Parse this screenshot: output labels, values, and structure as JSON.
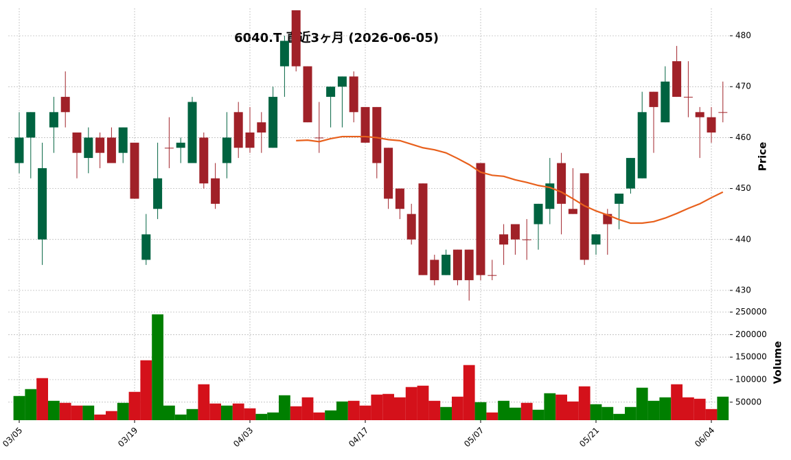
{
  "chart_data": {
    "type": "candlestick",
    "title": "6040.T 直近3ヶ月 (2026-06-05)",
    "ylabel": "Price",
    "grid": true,
    "up_color": "#006340",
    "down_color": "#a02128",
    "categories": [
      "03/05",
      "03/06",
      "03/09",
      "03/10",
      "03/11",
      "03/12",
      "03/13",
      "03/16",
      "03/17",
      "03/18",
      "03/19",
      "03/23",
      "03/24",
      "03/25",
      "03/26",
      "03/27",
      "03/30",
      "03/31",
      "04/01",
      "04/02",
      "04/03",
      "04/06",
      "04/07",
      "04/08",
      "04/09",
      "04/10",
      "04/13",
      "04/14",
      "04/15",
      "04/16",
      "04/17",
      "04/20",
      "04/21",
      "04/22",
      "04/23",
      "04/24",
      "04/27",
      "04/28",
      "04/30",
      "05/01",
      "05/07",
      "05/08",
      "05/11",
      "05/12",
      "05/13",
      "05/14",
      "05/15",
      "05/18",
      "05/19",
      "05/20",
      "05/21",
      "05/22",
      "05/25",
      "05/26",
      "05/27",
      "05/28",
      "05/29",
      "06/01",
      "06/02",
      "06/03",
      "06/04",
      "06/05"
    ],
    "open": [
      455,
      460,
      440,
      462,
      468,
      461,
      456,
      460,
      460,
      457,
      459,
      436,
      446,
      458,
      458,
      455,
      460,
      452,
      455,
      465,
      461,
      463,
      458,
      474,
      485,
      474,
      460,
      468,
      470,
      472,
      466,
      466,
      458,
      450,
      445,
      451,
      436,
      433,
      438,
      438,
      455,
      433,
      441,
      443,
      440,
      443,
      446,
      455,
      446,
      453,
      439,
      445,
      447,
      450,
      452,
      469,
      463,
      475,
      468,
      465,
      464,
      465
    ],
    "high": [
      465,
      465,
      459,
      468,
      473,
      461,
      462,
      461,
      462,
      462,
      459,
      445,
      459,
      464,
      460,
      468,
      461,
      455,
      465,
      467,
      466,
      465,
      470,
      480,
      485,
      474,
      467,
      470,
      472,
      473,
      466,
      466,
      458,
      450,
      447,
      451,
      437,
      438,
      438,
      438,
      455,
      436,
      443,
      443,
      444,
      447,
      456,
      457,
      454,
      453,
      441,
      446,
      449,
      456,
      469,
      469,
      474,
      478,
      475,
      466,
      466,
      471
    ],
    "low": [
      453,
      452,
      435,
      457,
      462,
      452,
      453,
      454,
      455,
      455,
      448,
      435,
      444,
      454,
      455,
      455,
      450,
      446,
      452,
      456,
      457,
      457,
      458,
      468,
      473,
      463,
      457,
      462,
      462,
      463,
      459,
      452,
      446,
      444,
      439,
      433,
      431,
      433,
      431,
      428,
      432,
      432,
      435,
      437,
      436,
      438,
      443,
      441,
      445,
      435,
      437,
      437,
      442,
      449,
      452,
      457,
      463,
      468,
      464,
      456,
      459,
      463
    ],
    "close": [
      460,
      465,
      454,
      465,
      465,
      457,
      460,
      457,
      455,
      462,
      448,
      441,
      452,
      458,
      459,
      467,
      451,
      447,
      460,
      458,
      458,
      461,
      468,
      479,
      474,
      463,
      460,
      470,
      472,
      465,
      459,
      455,
      448,
      446,
      440,
      433,
      432,
      437,
      432,
      432,
      433,
      433,
      439,
      440,
      440,
      447,
      451,
      447,
      445,
      436,
      441,
      443,
      449,
      456,
      465,
      466,
      471,
      468,
      468,
      464,
      461,
      465
    ],
    "ylim": [
      427.7,
      485.4
    ],
    "yticks": [
      430,
      440,
      450,
      460,
      470,
      480
    ],
    "xticks": [
      "03/05",
      "03/19",
      "04/03",
      "04/17",
      "05/07",
      "05/21",
      "06/04"
    ],
    "ma": {
      "color": "#e8601c",
      "values": [
        null,
        null,
        null,
        null,
        null,
        null,
        null,
        null,
        null,
        null,
        null,
        null,
        null,
        null,
        null,
        null,
        null,
        null,
        null,
        null,
        null,
        null,
        null,
        null,
        459.4,
        459.5,
        459.2,
        459.8,
        460.2,
        460.2,
        460.2,
        460,
        459.6,
        459.4,
        458.7,
        458,
        457.6,
        457,
        455.9,
        454.7,
        453.2,
        452.6,
        452.4,
        451.7,
        451.2,
        450.6,
        450.2,
        449.3,
        448,
        446.6,
        445.6,
        444.8,
        443.9,
        443.2,
        443.2,
        443.5,
        444.2,
        445.1,
        446.1,
        447,
        448.2,
        449.3
      ]
    },
    "volume": {
      "ylabel": "Volume",
      "up_color": "#007f00",
      "down_color": "#d4111a",
      "ylim": [
        10000,
        260000
      ],
      "yticks": [
        50000,
        100000,
        150000,
        200000,
        250000
      ],
      "values": [
        63700,
        79000,
        103400,
        53000,
        48500,
        42400,
        42400,
        22500,
        30200,
        48500,
        72900,
        143000,
        245000,
        42400,
        22500,
        34700,
        89700,
        47000,
        42400,
        47000,
        36300,
        24000,
        27100,
        65300,
        40800,
        60700,
        27100,
        31700,
        51500,
        53000,
        42400,
        66800,
        68300,
        60700,
        83600,
        86600,
        53000,
        39300,
        62200,
        132400,
        50000,
        27100,
        53000,
        37800,
        48500,
        33200,
        69800,
        66800,
        51500,
        85100,
        45400,
        39300,
        24000,
        39300,
        82100,
        53000,
        60700,
        89700,
        60700,
        57600,
        34700,
        62200
      ]
    }
  }
}
